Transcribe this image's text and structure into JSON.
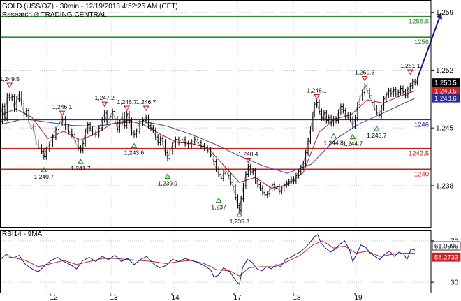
{
  "chart_data": {
    "type": "line",
    "title": "GOLD (US$/OZ) - 30min - 12/19/2018 4:52:25 AM (CET)",
    "subtitle": "Research ® TRADING CENTRAL",
    "x_labels": [
      "12",
      "13",
      "14",
      "17",
      "18",
      "19"
    ],
    "y_ticks": [
      "1,259",
      "1,252",
      "1,245",
      "1,238"
    ],
    "ylim": [
      1233.0,
      1260.5
    ],
    "price": [
      [
        0,
        1245.8
      ],
      [
        3,
        1247.6
      ],
      [
        6,
        1246.2
      ],
      [
        9,
        1248.9
      ],
      [
        12,
        1248.6
      ],
      [
        15,
        1248.8
      ],
      [
        18,
        1247.3
      ],
      [
        21,
        1248.5
      ],
      [
        24,
        1249.1
      ],
      [
        27,
        1248.0
      ],
      [
        30,
        1246.7
      ],
      [
        33,
        1247.1
      ],
      [
        36,
        1246.0
      ],
      [
        39,
        1244.9
      ],
      [
        42,
        1245.2
      ],
      [
        45,
        1243.3
      ],
      [
        48,
        1242.7
      ],
      [
        52,
        1242.2
      ],
      [
        55,
        1241.5
      ],
      [
        58,
        1242.4
      ],
      [
        62,
        1243.0
      ],
      [
        66,
        1243.9
      ],
      [
        70,
        1244.8
      ],
      [
        74,
        1245.6
      ],
      [
        78,
        1246.1
      ],
      [
        82,
        1245.1
      ],
      [
        86,
        1244.6
      ],
      [
        90,
        1244.2
      ],
      [
        94,
        1243.4
      ],
      [
        98,
        1242.6
      ],
      [
        101,
        1242.3
      ],
      [
        104,
        1243.1
      ],
      [
        107,
        1244.6
      ],
      [
        110,
        1245.4
      ],
      [
        113,
        1244.9
      ],
      [
        116,
        1244.4
      ],
      [
        120,
        1244.2
      ],
      [
        124,
        1245.0
      ],
      [
        128,
        1246.0
      ],
      [
        131,
        1246.8
      ],
      [
        134,
        1245.7
      ],
      [
        138,
        1246.4
      ],
      [
        141,
        1247.0
      ],
      [
        144,
        1246.1
      ],
      [
        147,
        1244.8
      ],
      [
        150,
        1245.6
      ],
      [
        153,
        1246.6
      ],
      [
        156,
        1245.3
      ],
      [
        159,
        1246.7
      ],
      [
        162,
        1245.9
      ],
      [
        165,
        1244.4
      ],
      [
        168,
        1244.2
      ],
      [
        171,
        1244.6
      ],
      [
        175,
        1245.6
      ],
      [
        179,
        1245.9
      ],
      [
        183,
        1246.3
      ],
      [
        186,
        1245.3
      ],
      [
        189,
        1245.0
      ],
      [
        192,
        1244.7
      ],
      [
        195,
        1243.9
      ],
      [
        198,
        1243.2
      ],
      [
        201,
        1243.7
      ],
      [
        204,
        1243.3
      ],
      [
        207,
        1242.0
      ],
      [
        210,
        1241.3
      ],
      [
        213,
        1242.1
      ],
      [
        216,
        1242.9
      ],
      [
        220,
        1243.6
      ],
      [
        224,
        1243.2
      ],
      [
        228,
        1243.6
      ],
      [
        232,
        1243.1
      ],
      [
        236,
        1242.9
      ],
      [
        240,
        1243.3
      ],
      [
        244,
        1243.6
      ],
      [
        248,
        1243.2
      ],
      [
        252,
        1242.8
      ],
      [
        256,
        1242.6
      ],
      [
        260,
        1242.3
      ],
      [
        264,
        1241.8
      ],
      [
        268,
        1240.9
      ],
      [
        271,
        1240.0
      ],
      [
        274,
        1239.4
      ],
      [
        277,
        1238.9
      ],
      [
        280,
        1239.5
      ],
      [
        283,
        1239.9
      ],
      [
        286,
        1239.2
      ],
      [
        289,
        1238.4
      ],
      [
        292,
        1237.9
      ],
      [
        295,
        1236.6
      ],
      [
        298,
        1235.6
      ],
      [
        300,
        1235.0
      ],
      [
        302,
        1236.4
      ],
      [
        305,
        1238.0
      ],
      [
        308,
        1239.4
      ],
      [
        311,
        1240.3
      ],
      [
        314,
        1239.6
      ],
      [
        317,
        1239.8
      ],
      [
        320,
        1238.6
      ],
      [
        323,
        1238.1
      ],
      [
        326,
        1237.7
      ],
      [
        329,
        1237.2
      ],
      [
        332,
        1236.9
      ],
      [
        335,
        1237.0
      ],
      [
        338,
        1237.6
      ],
      [
        341,
        1238.1
      ],
      [
        344,
        1237.7
      ],
      [
        347,
        1237.9
      ],
      [
        350,
        1237.3
      ],
      [
        353,
        1237.6
      ],
      [
        356,
        1238.1
      ],
      [
        359,
        1238.3
      ],
      [
        362,
        1238.5
      ],
      [
        365,
        1238.8
      ],
      [
        368,
        1238.6
      ],
      [
        371,
        1239.2
      ],
      [
        374,
        1239.7
      ],
      [
        377,
        1240.2
      ],
      [
        380,
        1240.7
      ],
      [
        383,
        1242.0
      ],
      [
        386,
        1243.4
      ],
      [
        389,
        1244.9
      ],
      [
        392,
        1246.6
      ],
      [
        394,
        1247.8
      ],
      [
        397,
        1248.1
      ],
      [
        400,
        1247.0
      ],
      [
        403,
        1246.2
      ],
      [
        406,
        1246.8
      ],
      [
        409,
        1245.9
      ],
      [
        412,
        1246.3
      ],
      [
        415,
        1245.5
      ],
      [
        418,
        1246.1
      ],
      [
        421,
        1245.9
      ],
      [
        424,
        1246.9
      ],
      [
        427,
        1247.6
      ],
      [
        430,
        1247.1
      ],
      [
        433,
        1246.3
      ],
      [
        436,
        1246.6
      ],
      [
        439,
        1246.1
      ],
      [
        442,
        1245.2
      ],
      [
        445,
        1246.2
      ],
      [
        448,
        1247.8
      ],
      [
        451,
        1248.6
      ],
      [
        454,
        1249.3
      ],
      [
        457,
        1250.1
      ],
      [
        460,
        1249.5
      ],
      [
        463,
        1248.9
      ],
      [
        466,
        1248.1
      ],
      [
        469,
        1247.4
      ],
      [
        472,
        1246.9
      ],
      [
        475,
        1246.5
      ],
      [
        478,
        1247.4
      ],
      [
        481,
        1248.5
      ],
      [
        484,
        1249.0
      ],
      [
        487,
        1249.5
      ],
      [
        490,
        1249.1
      ],
      [
        493,
        1249.6
      ],
      [
        496,
        1249.1
      ],
      [
        499,
        1249.3
      ],
      [
        502,
        1249.8
      ],
      [
        505,
        1249.4
      ],
      [
        508,
        1248.9
      ],
      [
        511,
        1249.7
      ],
      [
        514,
        1250.1
      ],
      [
        517,
        1250.6
      ],
      [
        520,
        1250.5
      ],
      [
        523,
        1250.8
      ]
    ],
    "ma_fast": [
      [
        0,
        1246.5
      ],
      [
        20,
        1247.3
      ],
      [
        40,
        1246.3
      ],
      [
        60,
        1243.7
      ],
      [
        80,
        1244.6
      ],
      [
        100,
        1243.5
      ],
      [
        120,
        1244.3
      ],
      [
        140,
        1245.5
      ],
      [
        160,
        1245.9
      ],
      [
        180,
        1245.4
      ],
      [
        200,
        1244.3
      ],
      [
        220,
        1243.3
      ],
      [
        240,
        1243.1
      ],
      [
        260,
        1242.6
      ],
      [
        280,
        1240.5
      ],
      [
        300,
        1238.4
      ],
      [
        320,
        1239.0
      ],
      [
        340,
        1237.7
      ],
      [
        360,
        1238.1
      ],
      [
        380,
        1239.6
      ],
      [
        400,
        1244.5
      ],
      [
        420,
        1246.1
      ],
      [
        440,
        1246.6
      ],
      [
        460,
        1248.4
      ],
      [
        480,
        1248.0
      ],
      [
        500,
        1248.8
      ],
      [
        520,
        1249.5
      ]
    ],
    "ma_slow": [
      [
        0,
        1245.4
      ],
      [
        30,
        1246.1
      ],
      [
        60,
        1245.7
      ],
      [
        90,
        1245.3
      ],
      [
        120,
        1245.2
      ],
      [
        150,
        1245.6
      ],
      [
        180,
        1245.8
      ],
      [
        210,
        1245.2
      ],
      [
        240,
        1244.2
      ],
      [
        270,
        1243.0
      ],
      [
        300,
        1241.6
      ],
      [
        330,
        1240.4
      ],
      [
        360,
        1239.5
      ],
      [
        390,
        1240.6
      ],
      [
        420,
        1243.6
      ],
      [
        450,
        1245.5
      ],
      [
        480,
        1246.8
      ],
      [
        520,
        1248.6
      ]
    ],
    "levels": [
      {
        "value": 1258.5,
        "label": "1258.5",
        "color": "#2e8b2e"
      },
      {
        "value": 1256.0,
        "label": "1256",
        "color": "#2e8b2e"
      },
      {
        "value": 1246.0,
        "label": "1246",
        "color": "#2b2b9b"
      },
      {
        "value": 1242.5,
        "label": "1242.5",
        "color": "#c81e1e"
      },
      {
        "value": 1240.0,
        "label": "1240",
        "color": "#c81e1e"
      }
    ],
    "badges": [
      {
        "value": 1250.5,
        "label": "1,250.5",
        "bg": "#000000",
        "fg": "#ffffff"
      },
      {
        "value": 1249.5,
        "label": "1,249.5",
        "bg": "#d42020",
        "fg": "#ffffff"
      },
      {
        "value": 1248.6,
        "label": "1,248.6",
        "bg": "#2b2b9b",
        "fg": "#ffffff"
      }
    ],
    "annotations": [
      {
        "label": "1,249.5",
        "x": 12,
        "y": 1249.5,
        "kind": "high"
      },
      {
        "label": "1,246.1",
        "x": 78,
        "y": 1246.1,
        "kind": "high"
      },
      {
        "label": "1,247.2",
        "x": 131,
        "y": 1247.2,
        "kind": "high"
      },
      {
        "label": "1,246.7",
        "x": 159,
        "y": 1246.7,
        "kind": "high"
      },
      {
        "label": "1,246.7",
        "x": 183,
        "y": 1246.7,
        "kind": "high"
      },
      {
        "label": "1,240.7",
        "x": 55,
        "y": 1240.7,
        "kind": "low"
      },
      {
        "label": "1,241.7",
        "x": 101,
        "y": 1241.7,
        "kind": "low"
      },
      {
        "label": "1,243.6",
        "x": 168,
        "y": 1243.6,
        "kind": "low"
      },
      {
        "label": "1,239.9",
        "x": 210,
        "y": 1239.9,
        "kind": "low"
      },
      {
        "label": "1,237",
        "x": 274,
        "y": 1237.0,
        "kind": "low"
      },
      {
        "label": "1,240.4",
        "x": 311,
        "y": 1240.4,
        "kind": "high"
      },
      {
        "label": "1,235.3",
        "x": 300,
        "y": 1235.3,
        "kind": "low"
      },
      {
        "label": "1,248.1",
        "x": 397,
        "y": 1248.1,
        "kind": "high"
      },
      {
        "label": "1,244.8",
        "x": 418,
        "y": 1244.8,
        "kind": "low"
      },
      {
        "label": "1,244.7",
        "x": 442,
        "y": 1244.7,
        "kind": "low"
      },
      {
        "label": "1,250.3",
        "x": 457,
        "y": 1250.3,
        "kind": "high"
      },
      {
        "label": "1,245.7",
        "x": 472,
        "y": 1245.7,
        "kind": "low"
      },
      {
        "label": "1,251.1",
        "x": 514,
        "y": 1251.1,
        "kind": "high"
      }
    ],
    "arrow": {
      "from": [
        523,
        1251.0
      ],
      "to": [
        553,
        1259.0
      ],
      "color": "#1a1a8c"
    },
    "rsi": {
      "title": "RSI14 - 9MA",
      "ylim": [
        20,
        80
      ],
      "y_ticks": [
        "70",
        "30"
      ],
      "badges": [
        {
          "value": 61.0999,
          "label": "61.0999",
          "bg": "#ffffff",
          "fg": "#000000",
          "border": "#000000"
        },
        {
          "value": 58.2733,
          "label": "58.2733",
          "bg": "#d42020",
          "fg": "#ffffff",
          "border": "#d42020"
        }
      ],
      "rsi": [
        [
          0,
          52
        ],
        [
          8,
          57
        ],
        [
          16,
          53
        ],
        [
          24,
          56
        ],
        [
          32,
          47
        ],
        [
          40,
          43
        ],
        [
          48,
          40
        ],
        [
          56,
          46
        ],
        [
          64,
          51
        ],
        [
          72,
          54
        ],
        [
          80,
          50
        ],
        [
          88,
          47
        ],
        [
          96,
          43
        ],
        [
          104,
          51
        ],
        [
          112,
          54
        ],
        [
          120,
          50
        ],
        [
          128,
          55
        ],
        [
          136,
          52
        ],
        [
          144,
          56
        ],
        [
          152,
          50
        ],
        [
          160,
          53
        ],
        [
          168,
          47
        ],
        [
          176,
          52
        ],
        [
          184,
          55
        ],
        [
          192,
          48
        ],
        [
          200,
          44
        ],
        [
          208,
          46
        ],
        [
          216,
          52
        ],
        [
          224,
          50
        ],
        [
          232,
          53
        ],
        [
          240,
          51
        ],
        [
          248,
          49
        ],
        [
          256,
          46
        ],
        [
          264,
          42
        ],
        [
          268,
          35
        ],
        [
          274,
          37
        ],
        [
          280,
          44
        ],
        [
          288,
          40
        ],
        [
          296,
          31
        ],
        [
          300,
          28
        ],
        [
          304,
          44
        ],
        [
          310,
          52
        ],
        [
          316,
          49
        ],
        [
          322,
          43
        ],
        [
          328,
          41
        ],
        [
          334,
          45
        ],
        [
          340,
          43
        ],
        [
          346,
          47
        ],
        [
          352,
          45
        ],
        [
          358,
          52
        ],
        [
          364,
          54
        ],
        [
          370,
          57
        ],
        [
          376,
          59
        ],
        [
          382,
          63
        ],
        [
          388,
          68
        ],
        [
          394,
          74
        ],
        [
          398,
          76
        ],
        [
          402,
          68
        ],
        [
          408,
          63
        ],
        [
          414,
          59
        ],
        [
          420,
          62
        ],
        [
          426,
          67
        ],
        [
          432,
          70
        ],
        [
          438,
          61
        ],
        [
          442,
          50
        ],
        [
          446,
          56
        ],
        [
          452,
          66
        ],
        [
          458,
          64
        ],
        [
          464,
          58
        ],
        [
          470,
          55
        ],
        [
          476,
          52
        ],
        [
          482,
          57
        ],
        [
          488,
          60
        ],
        [
          494,
          55
        ],
        [
          500,
          59
        ],
        [
          506,
          57
        ],
        [
          510,
          52
        ],
        [
          515,
          62
        ],
        [
          520,
          61
        ]
      ],
      "ma": [
        [
          0,
          53
        ],
        [
          16,
          54
        ],
        [
          32,
          51
        ],
        [
          48,
          45
        ],
        [
          64,
          48
        ],
        [
          80,
          51
        ],
        [
          96,
          47
        ],
        [
          112,
          50
        ],
        [
          128,
          53
        ],
        [
          144,
          53
        ],
        [
          160,
          52
        ],
        [
          176,
          51
        ],
        [
          192,
          50
        ],
        [
          208,
          48
        ],
        [
          224,
          50
        ],
        [
          240,
          51
        ],
        [
          256,
          48
        ],
        [
          272,
          42
        ],
        [
          288,
          41
        ],
        [
          300,
          36
        ],
        [
          312,
          44
        ],
        [
          328,
          45
        ],
        [
          344,
          45
        ],
        [
          360,
          50
        ],
        [
          376,
          56
        ],
        [
          392,
          66
        ],
        [
          404,
          70
        ],
        [
          418,
          63
        ],
        [
          432,
          65
        ],
        [
          446,
          58
        ],
        [
          460,
          60
        ],
        [
          476,
          55
        ],
        [
          492,
          57
        ],
        [
          506,
          58
        ],
        [
          520,
          58.3
        ]
      ]
    }
  }
}
